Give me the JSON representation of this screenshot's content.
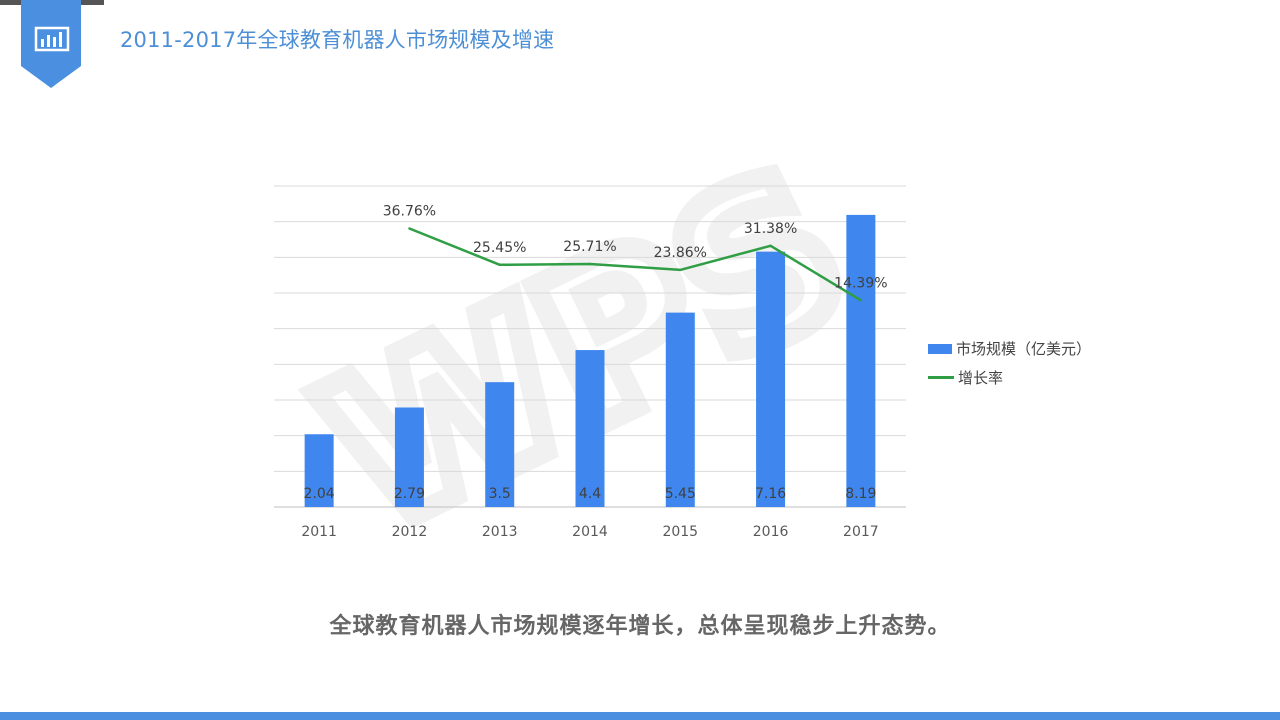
{
  "slide": {
    "title": "2011-2017年全球教育机器人市场规模及增速",
    "caption": "全球教育机器人市场规模逐年增长，总体呈现稳步上升态势。",
    "icon": "chart-icon",
    "accent_color": "#4a8fe0"
  },
  "chart_data": {
    "type": "bar",
    "categories": [
      "2011",
      "2012",
      "2013",
      "2014",
      "2015",
      "2016",
      "2017"
    ],
    "series": [
      {
        "name": "市场规模（亿美元）",
        "type": "bar",
        "color": "#3f87ee",
        "values": [
          2.04,
          2.79,
          3.5,
          4.4,
          5.45,
          7.16,
          8.19
        ],
        "labels": [
          "2.04",
          "2.79",
          "3.5",
          "4.4",
          "5.45",
          "7.16",
          "8.19"
        ]
      },
      {
        "name": "增长率",
        "type": "line",
        "color": "#2f9e44",
        "values": [
          null,
          36.76,
          25.45,
          25.71,
          23.86,
          31.38,
          14.39
        ],
        "labels": [
          null,
          "36.76%",
          "25.45%",
          "25.71%",
          "23.86%",
          "31.38%",
          "14.39%"
        ]
      }
    ],
    "y_left_range": [
      0,
      9
    ],
    "y_right_range": [
      -50,
      50
    ],
    "grid": true,
    "legend_position": "right",
    "axis_labels_shown": false,
    "watermark": "WPS"
  }
}
